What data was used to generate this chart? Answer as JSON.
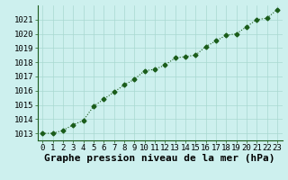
{
  "x": [
    0,
    1,
    2,
    3,
    4,
    5,
    6,
    7,
    8,
    9,
    10,
    11,
    12,
    13,
    14,
    15,
    16,
    17,
    18,
    19,
    20,
    21,
    22,
    23
  ],
  "y": [
    1013.0,
    1013.0,
    1013.2,
    1013.6,
    1013.9,
    1014.9,
    1015.4,
    1015.9,
    1016.4,
    1016.8,
    1017.4,
    1017.5,
    1017.8,
    1018.3,
    1018.4,
    1018.5,
    1019.1,
    1019.5,
    1019.9,
    1020.0,
    1020.5,
    1021.0,
    1021.1,
    1021.7
  ],
  "xlim": [
    -0.5,
    23.5
  ],
  "ylim": [
    1012.5,
    1022.0
  ],
  "yticks": [
    1013,
    1014,
    1015,
    1016,
    1017,
    1018,
    1019,
    1020,
    1021
  ],
  "xticks": [
    0,
    1,
    2,
    3,
    4,
    5,
    6,
    7,
    8,
    9,
    10,
    11,
    12,
    13,
    14,
    15,
    16,
    17,
    18,
    19,
    20,
    21,
    22,
    23
  ],
  "xlabel": "Graphe pression niveau de la mer (hPa)",
  "line_color": "#1a5c1a",
  "marker": "D",
  "marker_size": 2.5,
  "background_color": "#cdf0ee",
  "grid_color": "#a8d8d0",
  "tick_label_fontsize": 6.5,
  "xlabel_fontsize": 8
}
